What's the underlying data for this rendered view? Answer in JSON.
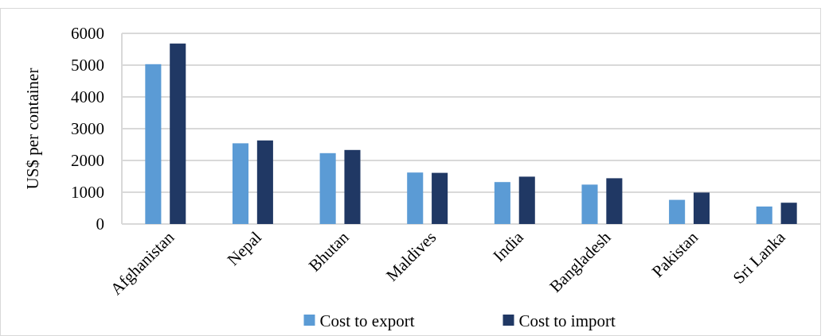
{
  "chart_data": {
    "type": "bar",
    "ylabel": "US$ per container",
    "categories": [
      "Afghanistan",
      "Nepal",
      "Bhutan",
      "Maldives",
      "India",
      "Bangladesh",
      "Pakistan",
      "Sri Lanka"
    ],
    "series": [
      {
        "name": "Cost to export",
        "color": "#5b9bd5",
        "values": [
          5030,
          2540,
          2230,
          1620,
          1320,
          1240,
          760,
          550
        ]
      },
      {
        "name": "Cost to import",
        "color": "#203864",
        "values": [
          5680,
          2630,
          2330,
          1610,
          1490,
          1440,
          990,
          670
        ]
      }
    ],
    "ylim": [
      0,
      6000
    ],
    "yticks": [
      0,
      1000,
      2000,
      3000,
      4000,
      5000,
      6000
    ],
    "grid": "y",
    "legend": "bottom"
  }
}
